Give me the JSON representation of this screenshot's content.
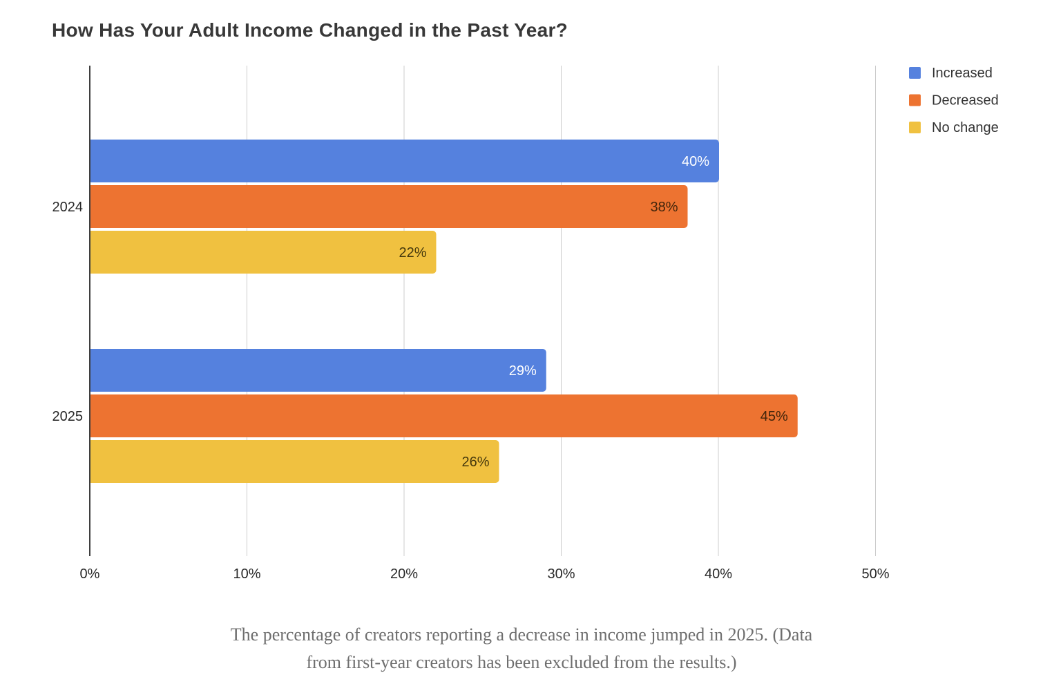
{
  "chart_data": {
    "type": "bar",
    "orientation": "horizontal",
    "title": "How Has Your Adult Income Changed in the Past Year?",
    "categories": [
      "2024",
      "2025"
    ],
    "series": [
      {
        "name": "Increased",
        "color": "#5581de",
        "label_color": "#ffffff",
        "values": [
          40,
          29
        ]
      },
      {
        "name": "Decreased",
        "color": "#ed7331",
        "label_color": "#42250b",
        "values": [
          38,
          45
        ]
      },
      {
        "name": "No change",
        "color": "#f0c140",
        "label_color": "#45380c",
        "values": [
          22,
          26
        ]
      }
    ],
    "value_suffix": "%",
    "xlim": [
      0,
      50
    ],
    "x_ticks": [
      {
        "value": 0,
        "label": "0%"
      },
      {
        "value": 10,
        "label": "10%"
      },
      {
        "value": 20,
        "label": "20%"
      },
      {
        "value": 30,
        "label": "30%"
      },
      {
        "value": 40,
        "label": "40%"
      },
      {
        "value": 50,
        "label": "50%"
      }
    ],
    "grid": true,
    "legend_position": "top-right",
    "axis_color": "#3f3f3f",
    "gridline_color": "#cccccc",
    "text_color": "#272727",
    "legend_text_color": "#333333"
  },
  "caption": {
    "line1": "The percentage of creators reporting a decrease in income jumped in 2025. (Data",
    "line2": "from first-year creators has been excluded from the results.)"
  }
}
